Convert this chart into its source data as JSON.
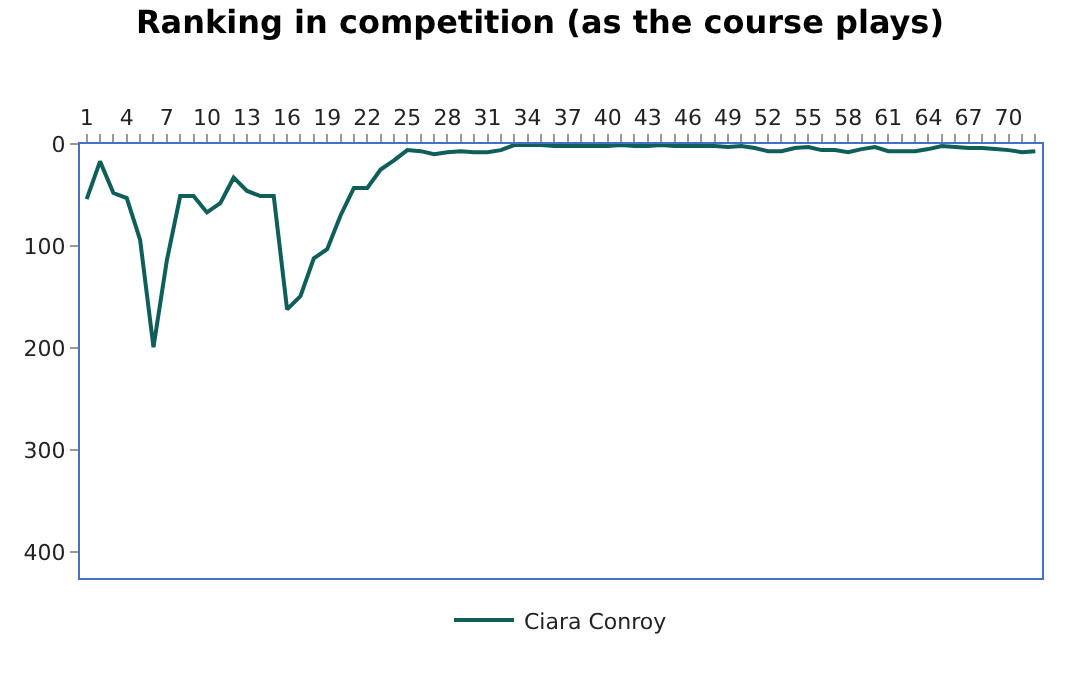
{
  "chart_data": {
    "type": "line",
    "title": "Ranking in competition (as the course plays)",
    "categories": [
      "1",
      null,
      null,
      "4",
      null,
      null,
      "7",
      null,
      null,
      "10",
      null,
      null,
      "13",
      null,
      null,
      "16",
      null,
      null,
      "19",
      null,
      null,
      "22",
      null,
      null,
      "25",
      null,
      null,
      "28",
      null,
      null,
      "31",
      null,
      null,
      "34",
      null,
      null,
      "37",
      null,
      null,
      "40",
      null,
      null,
      "43",
      null,
      null,
      "46",
      null,
      null,
      "49",
      null,
      null,
      "52",
      null,
      null,
      "55",
      null,
      null,
      "58",
      null,
      null,
      "61",
      null,
      null,
      "64",
      null,
      null,
      "67",
      null,
      null,
      "70",
      null,
      null
    ],
    "series": [
      {
        "name": "Ciara Conroy",
        "color": "#0e5e5a",
        "values": [
          54,
          17,
          48,
          53,
          94,
          199,
          114,
          51,
          51,
          67,
          58,
          33,
          46,
          51,
          51,
          162,
          149,
          112,
          103,
          70,
          43,
          43,
          25,
          16,
          6,
          7,
          10,
          8,
          7,
          8,
          8,
          6,
          1,
          1,
          1,
          2,
          2,
          2,
          2,
          2,
          1,
          2,
          2,
          1,
          2,
          2,
          2,
          2,
          3,
          2,
          4,
          7,
          7,
          4,
          3,
          6,
          6,
          8,
          5,
          3,
          7,
          7,
          7,
          5,
          2,
          3,
          4,
          4,
          5,
          6,
          8,
          7
        ]
      }
    ],
    "ylim": [
      425,
      0
    ],
    "yticks": [
      0,
      100,
      200,
      300,
      400
    ],
    "legend": "bottom",
    "marker": "none",
    "line_style": "solid"
  }
}
